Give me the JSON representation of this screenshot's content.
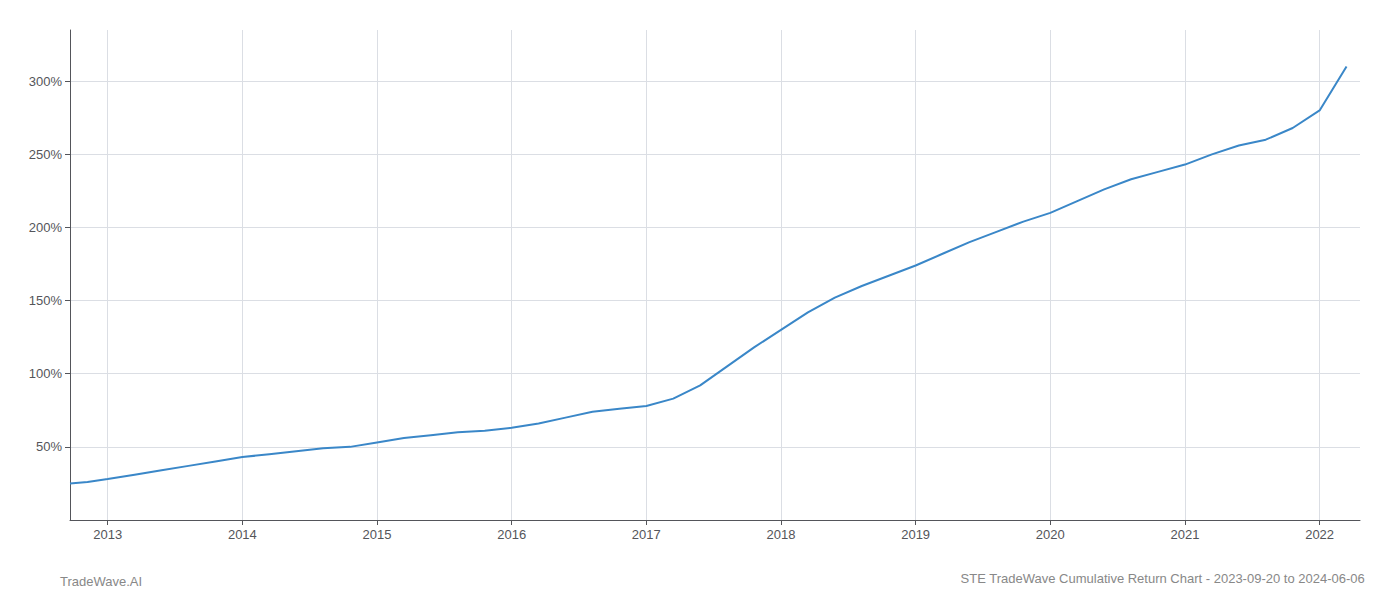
{
  "chart_data": {
    "type": "line",
    "title": "STE TradeWave Cumulative Return Chart - 2023-09-20 to 2024-06-06",
    "annotations": [
      "TradeWave.AI"
    ],
    "color": "#3a87c8",
    "grid": true,
    "xlim": [
      2012.72,
      2022.3
    ],
    "xticks": [
      2013,
      2014,
      2015,
      2016,
      2017,
      2018,
      2019,
      2020,
      2021,
      2022
    ],
    "ylim": [
      0,
      335
    ],
    "yticks": [
      {
        "value": 50,
        "label": "50%"
      },
      {
        "value": 100,
        "label": "100%"
      },
      {
        "value": 150,
        "label": "150%"
      },
      {
        "value": 200,
        "label": "200%"
      },
      {
        "value": 250,
        "label": "250%"
      },
      {
        "value": 300,
        "label": "300%"
      }
    ],
    "x": [
      2012.72,
      2012.85,
      2013.0,
      2013.2,
      2013.4,
      2013.6,
      2013.8,
      2014.0,
      2014.2,
      2014.4,
      2014.6,
      2014.8,
      2015.0,
      2015.2,
      2015.4,
      2015.6,
      2015.8,
      2016.0,
      2016.2,
      2016.4,
      2016.6,
      2016.8,
      2017.0,
      2017.2,
      2017.4,
      2017.6,
      2017.8,
      2018.0,
      2018.2,
      2018.4,
      2018.6,
      2018.8,
      2019.0,
      2019.2,
      2019.4,
      2019.6,
      2019.8,
      2020.0,
      2020.2,
      2020.4,
      2020.6,
      2020.8,
      2021.0,
      2021.2,
      2021.4,
      2021.6,
      2021.8,
      2022.0,
      2022.1,
      2022.2
    ],
    "values": [
      25,
      26,
      28,
      31,
      34,
      37,
      40,
      43,
      45,
      47,
      49,
      50,
      53,
      56,
      58,
      60,
      61,
      63,
      66,
      70,
      74,
      76,
      78,
      83,
      92,
      105,
      118,
      130,
      142,
      152,
      160,
      167,
      174,
      182,
      190,
      197,
      204,
      210,
      218,
      226,
      233,
      238,
      243,
      250,
      256,
      260,
      268,
      280,
      295,
      310
    ]
  }
}
